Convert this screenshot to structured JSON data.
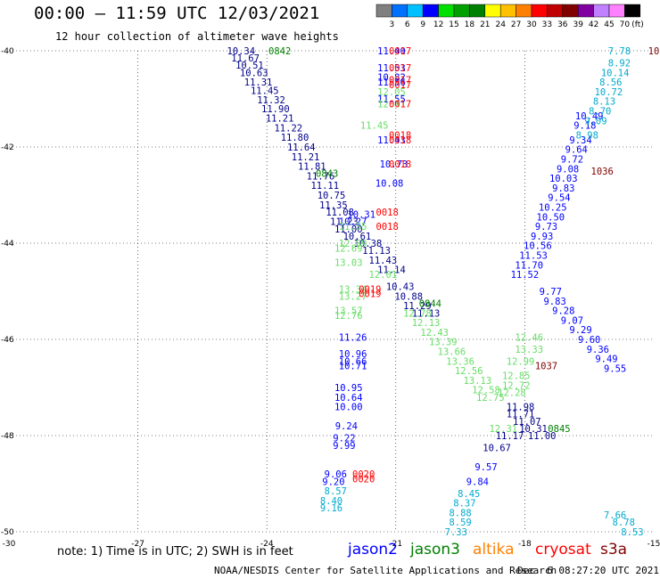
{
  "header": {
    "title": "00:00 – 11:59 UTC 12/03/2021",
    "subtitle": "12 hour collection of altimeter wave heights"
  },
  "colorbar": {
    "unit": "(ft)",
    "labels": [
      "3",
      "6",
      "9",
      "12",
      "15",
      "18",
      "21",
      "24",
      "27",
      "30",
      "33",
      "36",
      "39",
      "42",
      "45",
      "70"
    ],
    "colors": [
      "#808080",
      "#0070ff",
      "#00c0ff",
      "#0000ff",
      "#00e000",
      "#00a000",
      "#008000",
      "#ffff00",
      "#ffc000",
      "#ff8000",
      "#ff0000",
      "#c00000",
      "#800000",
      "#8000a0",
      "#c080ff",
      "#ff80ff",
      "#000000"
    ]
  },
  "note": "note: 1) Time is in UTC; 2) SWH is in feet",
  "satellites": [
    {
      "name": "jason2",
      "color": "#0000ff"
    },
    {
      "name": "jason3",
      "color": "#008000"
    },
    {
      "name": "altika",
      "color": "#ff8000"
    },
    {
      "name": "cryosat",
      "color": "#ff0000"
    },
    {
      "name": "s3a",
      "color": "#800000"
    }
  ],
  "footer": {
    "center": "NOAA/NESDIS Center for Satellite Applications and Research",
    "timestamp": "Dec  6 08:27:20 UTC 2021"
  },
  "chart_data": {
    "type": "scatter",
    "xlim": [
      -30,
      -15
    ],
    "ylim": [
      -50,
      -40
    ],
    "x_ticks": [
      -30,
      -27,
      -24,
      -21,
      -18,
      -15
    ],
    "y_ticks": [
      -40,
      -42,
      -44,
      -46,
      -48,
      -50
    ],
    "grid": true,
    "series": [
      {
        "name": "jason2 track A",
        "color": "#00008b",
        "points": [
          {
            "x": -24.6,
            "y": -40.0,
            "label": "10.34"
          },
          {
            "x": -24.5,
            "y": -40.15,
            "label": "11.67"
          },
          {
            "x": -24.4,
            "y": -40.3,
            "label": "10.51"
          },
          {
            "x": -24.3,
            "y": -40.45,
            "label": "10.63"
          },
          {
            "x": -24.2,
            "y": -40.65,
            "label": "11.31"
          },
          {
            "x": -24.05,
            "y": -40.82,
            "label": "11.45"
          },
          {
            "x": -23.9,
            "y": -41.02,
            "label": "11.32"
          },
          {
            "x": -23.8,
            "y": -41.2,
            "label": "11.90"
          },
          {
            "x": -23.7,
            "y": -41.4,
            "label": "11.21"
          },
          {
            "x": -23.5,
            "y": -41.6,
            "label": "11.22"
          },
          {
            "x": -23.35,
            "y": -41.8,
            "label": "11.80"
          },
          {
            "x": -23.2,
            "y": -42.0,
            "label": "11.64"
          },
          {
            "x": -23.1,
            "y": -42.2,
            "label": "11.21"
          },
          {
            "x": -22.95,
            "y": -42.4,
            "label": "11.81"
          },
          {
            "x": -22.75,
            "y": -42.6,
            "label": "11.76"
          },
          {
            "x": -22.65,
            "y": -42.8,
            "label": "11.11"
          },
          {
            "x": -22.5,
            "y": -43.0,
            "label": "10.75"
          },
          {
            "x": -22.45,
            "y": -43.2,
            "label": "11.35"
          },
          {
            "x": -22.3,
            "y": -43.35,
            "label": "11.08"
          },
          {
            "x": -22.2,
            "y": -43.55,
            "label": "11.23"
          },
          {
            "x": -22.1,
            "y": -43.7,
            "label": "11.00"
          },
          {
            "x": -21.9,
            "y": -43.85,
            "label": "10.61"
          },
          {
            "x": -21.65,
            "y": -44.0,
            "label": "10.38"
          },
          {
            "x": -21.45,
            "y": -44.15,
            "label": "11.13"
          },
          {
            "x": -21.3,
            "y": -44.35,
            "label": "11.43"
          },
          {
            "x": -21.1,
            "y": -44.55,
            "label": "11.14"
          },
          {
            "x": -20.9,
            "y": -44.9,
            "label": "10.43"
          },
          {
            "x": -20.7,
            "y": -45.1,
            "label": "10.88"
          },
          {
            "x": -20.5,
            "y": -45.3,
            "label": "11.29"
          },
          {
            "x": -20.3,
            "y": -45.45,
            "label": "11.13"
          },
          {
            "x": -18.1,
            "y": -47.4,
            "label": "11.98"
          },
          {
            "x": -18.1,
            "y": -47.55,
            "label": "11.71"
          },
          {
            "x": -17.95,
            "y": -47.7,
            "label": "11.07"
          },
          {
            "x": -17.8,
            "y": -47.85,
            "label": "10.31"
          },
          {
            "x": -17.6,
            "y": -48.0,
            "label": "11.00"
          },
          {
            "x": -18.35,
            "y": -48.0,
            "label": "11.17"
          },
          {
            "x": -18.65,
            "y": -48.25,
            "label": "10.67"
          }
        ]
      },
      {
        "name": "jason2 track B",
        "color": "#0000ff",
        "points": [
          {
            "x": -21.1,
            "y": -40.0,
            "label": "11.40"
          },
          {
            "x": -21.1,
            "y": -40.35,
            "label": "11.53"
          },
          {
            "x": -21.1,
            "y": -40.55,
            "label": "10.82"
          },
          {
            "x": -21.1,
            "y": -40.65,
            "label": "11.56"
          },
          {
            "x": -21.1,
            "y": -41.0,
            "label": "11.55"
          },
          {
            "x": -21.1,
            "y": -41.85,
            "label": "11.43"
          },
          {
            "x": -21.05,
            "y": -42.35,
            "label": "10.73"
          },
          {
            "x": -21.15,
            "y": -42.75,
            "label": "10.08"
          },
          {
            "x": -21.8,
            "y": -43.4,
            "label": "10.31"
          },
          {
            "x": -22.0,
            "y": -43.55,
            "label": "10.27"
          },
          {
            "x": -22.0,
            "y": -45.95,
            "label": "11.26"
          },
          {
            "x": -22.0,
            "y": -46.3,
            "label": "10.96"
          },
          {
            "x": -22.0,
            "y": -46.45,
            "label": "10.66"
          },
          {
            "x": -22.0,
            "y": -46.55,
            "label": "10.71"
          },
          {
            "x": -22.1,
            "y": -47.0,
            "label": "10.95"
          },
          {
            "x": -22.1,
            "y": -47.2,
            "label": "10.64"
          },
          {
            "x": -22.1,
            "y": -47.4,
            "label": "10.00"
          },
          {
            "x": -22.15,
            "y": -47.8,
            "label": "9.24"
          },
          {
            "x": -22.2,
            "y": -48.05,
            "label": "9.22"
          },
          {
            "x": -22.2,
            "y": -48.2,
            "label": "9.99"
          },
          {
            "x": -22.4,
            "y": -48.8,
            "label": "9.06"
          },
          {
            "x": -22.45,
            "y": -48.95,
            "label": "9.20"
          },
          {
            "x": -18.9,
            "y": -48.65,
            "label": "9.57"
          },
          {
            "x": -19.1,
            "y": -48.95,
            "label": "9.84"
          },
          {
            "x": -16.5,
            "y": -41.35,
            "label": "10.49"
          },
          {
            "x": -16.6,
            "y": -41.55,
            "label": "9.18"
          },
          {
            "x": -16.7,
            "y": -41.85,
            "label": "9.34"
          },
          {
            "x": -16.8,
            "y": -42.05,
            "label": "9.64"
          },
          {
            "x": -16.9,
            "y": -42.25,
            "label": "9.72"
          },
          {
            "x": -17.0,
            "y": -42.45,
            "label": "9.08"
          },
          {
            "x": -17.1,
            "y": -42.65,
            "label": "10.03"
          },
          {
            "x": -17.1,
            "y": -42.85,
            "label": "9.83"
          },
          {
            "x": -17.2,
            "y": -43.05,
            "label": "9.54"
          },
          {
            "x": -17.35,
            "y": -43.25,
            "label": "10.25"
          },
          {
            "x": -17.4,
            "y": -43.45,
            "label": "10.50"
          },
          {
            "x": -17.5,
            "y": -43.65,
            "label": "9.73"
          },
          {
            "x": -17.6,
            "y": -43.85,
            "label": "9.93"
          },
          {
            "x": -17.7,
            "y": -44.05,
            "label": "10.56"
          },
          {
            "x": -17.8,
            "y": -44.25,
            "label": "11.53"
          },
          {
            "x": -17.9,
            "y": -44.45,
            "label": "11.70"
          },
          {
            "x": -18.0,
            "y": -44.65,
            "label": "11.52"
          },
          {
            "x": -17.4,
            "y": -45.0,
            "label": "9.77"
          },
          {
            "x": -17.3,
            "y": -45.2,
            "label": "9.83"
          },
          {
            "x": -17.1,
            "y": -45.4,
            "label": "9.28"
          },
          {
            "x": -16.9,
            "y": -45.6,
            "label": "9.07"
          },
          {
            "x": -16.7,
            "y": -45.8,
            "label": "9.29"
          },
          {
            "x": -16.5,
            "y": -46.0,
            "label": "9.60"
          },
          {
            "x": -16.3,
            "y": -46.2,
            "label": "9.36"
          },
          {
            "x": -16.1,
            "y": -46.4,
            "label": "9.49"
          },
          {
            "x": -15.9,
            "y": -46.6,
            "label": "9.55"
          }
        ]
      },
      {
        "name": "altimeter cyan track",
        "color": "#00aacc",
        "points": [
          {
            "x": -15.8,
            "y": -40.0,
            "label": "7.78"
          },
          {
            "x": -15.8,
            "y": -40.25,
            "label": "8.92"
          },
          {
            "x": -15.9,
            "y": -40.45,
            "label": "10.14"
          },
          {
            "x": -16.0,
            "y": -40.65,
            "label": "8.56"
          },
          {
            "x": -16.05,
            "y": -40.85,
            "label": "10.72"
          },
          {
            "x": -16.15,
            "y": -41.05,
            "label": "8.13"
          },
          {
            "x": -16.25,
            "y": -41.25,
            "label": "8.70"
          },
          {
            "x": -16.35,
            "y": -41.45,
            "label": "9.09"
          },
          {
            "x": -16.55,
            "y": -41.75,
            "label": "8.98"
          },
          {
            "x": -22.4,
            "y": -49.15,
            "label": "8.57"
          },
          {
            "x": -22.5,
            "y": -49.35,
            "label": "8.40"
          },
          {
            "x": -22.5,
            "y": -49.5,
            "label": "9.16"
          },
          {
            "x": -19.3,
            "y": -49.2,
            "label": "8.45"
          },
          {
            "x": -19.4,
            "y": -49.4,
            "label": "8.37"
          },
          {
            "x": -19.5,
            "y": -49.6,
            "label": "8.88"
          },
          {
            "x": -19.5,
            "y": -49.8,
            "label": "8.59"
          },
          {
            "x": -19.6,
            "y": -50.0,
            "label": "7.33"
          },
          {
            "x": -15.9,
            "y": -49.65,
            "label": "7.66"
          },
          {
            "x": -15.7,
            "y": -49.8,
            "label": "8.78"
          },
          {
            "x": -15.5,
            "y": -50.0,
            "label": "8.53"
          }
        ]
      },
      {
        "name": "jason3 light track",
        "color": "#66dd66",
        "points": [
          {
            "x": -21.1,
            "y": -40.85,
            "label": "12.05"
          },
          {
            "x": -21.1,
            "y": -41.1,
            "label": "12.41"
          },
          {
            "x": -21.5,
            "y": -41.55,
            "label": "11.45"
          },
          {
            "x": -22.0,
            "y": -43.65,
            "label": "11.55"
          },
          {
            "x": -22.0,
            "y": -44.0,
            "label": "12.89"
          },
          {
            "x": -22.1,
            "y": -44.1,
            "label": "12.69"
          },
          {
            "x": -22.1,
            "y": -44.4,
            "label": "13.03"
          },
          {
            "x": -21.3,
            "y": -44.65,
            "label": "12.01"
          },
          {
            "x": -22.0,
            "y": -44.95,
            "label": "13.34"
          },
          {
            "x": -22.0,
            "y": -45.1,
            "label": "13.27"
          },
          {
            "x": -22.1,
            "y": -45.4,
            "label": "13.57"
          },
          {
            "x": -22.1,
            "y": -45.5,
            "label": "12.76"
          },
          {
            "x": -20.5,
            "y": -45.45,
            "label": "12.78"
          },
          {
            "x": -20.3,
            "y": -45.65,
            "label": "12.13"
          },
          {
            "x": -20.1,
            "y": -45.85,
            "label": "12.43"
          },
          {
            "x": -19.9,
            "y": -46.05,
            "label": "13.39"
          },
          {
            "x": -19.7,
            "y": -46.25,
            "label": "13.66"
          },
          {
            "x": -19.5,
            "y": -46.45,
            "label": "13.36"
          },
          {
            "x": -19.3,
            "y": -46.65,
            "label": "12.56"
          },
          {
            "x": -19.1,
            "y": -46.85,
            "label": "13.13"
          },
          {
            "x": -18.9,
            "y": -47.05,
            "label": "12.58"
          },
          {
            "x": -18.8,
            "y": -47.2,
            "label": "12.75"
          },
          {
            "x": -18.5,
            "y": -47.85,
            "label": "12.31"
          },
          {
            "x": -17.9,
            "y": -45.95,
            "label": "12.46"
          },
          {
            "x": -17.9,
            "y": -46.2,
            "label": "13.33"
          },
          {
            "x": -18.1,
            "y": -46.45,
            "label": "12.99"
          },
          {
            "x": -18.2,
            "y": -46.75,
            "label": "12.85"
          },
          {
            "x": -18.2,
            "y": -46.95,
            "label": "12.72"
          },
          {
            "x": -18.3,
            "y": -47.1,
            "label": "12.28"
          }
        ]
      },
      {
        "name": "jason3 times",
        "color": "#008000",
        "points": [
          {
            "x": -23.7,
            "y": -40.0,
            "label": "0842"
          },
          {
            "x": -22.6,
            "y": -42.55,
            "label": "0843"
          },
          {
            "x": -20.2,
            "y": -45.25,
            "label": "0844"
          },
          {
            "x": -17.2,
            "y": -47.85,
            "label": "0845"
          }
        ]
      },
      {
        "name": "cryosat times",
        "color": "#ff0000",
        "points": [
          {
            "x": -20.9,
            "y": -40.0,
            "label": "0017"
          },
          {
            "x": -20.9,
            "y": -40.35,
            "label": "0017"
          },
          {
            "x": -20.9,
            "y": -40.6,
            "label": "0017"
          },
          {
            "x": -20.9,
            "y": -40.7,
            "label": "0017"
          },
          {
            "x": -20.9,
            "y": -41.1,
            "label": "0017"
          },
          {
            "x": -20.9,
            "y": -41.75,
            "label": "0018"
          },
          {
            "x": -20.9,
            "y": -41.85,
            "label": "0018"
          },
          {
            "x": -20.9,
            "y": -42.35,
            "label": "0018"
          },
          {
            "x": -21.2,
            "y": -43.35,
            "label": "0018"
          },
          {
            "x": -21.2,
            "y": -43.65,
            "label": "0018"
          },
          {
            "x": -21.6,
            "y": -44.95,
            "label": "0019"
          },
          {
            "x": -21.6,
            "y": -45.05,
            "label": "0019"
          },
          {
            "x": -21.75,
            "y": -48.8,
            "label": "0020"
          },
          {
            "x": -21.75,
            "y": -48.9,
            "label": "0020"
          }
        ]
      },
      {
        "name": "s3a times",
        "color": "#800000",
        "points": [
          {
            "x": -15.0,
            "y": -40.0,
            "label": "10"
          },
          {
            "x": -16.2,
            "y": -42.5,
            "label": "1036"
          },
          {
            "x": -17.5,
            "y": -46.55,
            "label": "1037"
          }
        ]
      }
    ]
  }
}
